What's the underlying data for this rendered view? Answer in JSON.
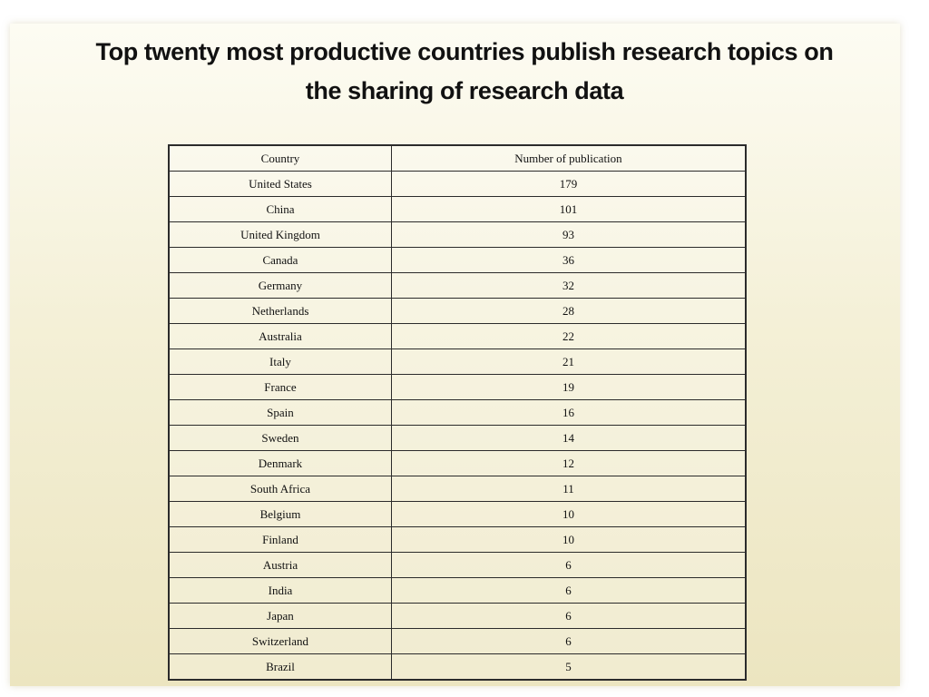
{
  "title_line1": "Top twenty most productive countries publish research topics on",
  "title_line2": "the sharing of research data",
  "chart_data": {
    "type": "table",
    "title": "Top twenty most productive countries publish research topics on the sharing of research data",
    "columns": [
      "Country",
      "Number of publication"
    ],
    "rows": [
      {
        "country": "United States",
        "count": 179
      },
      {
        "country": "China",
        "count": 101
      },
      {
        "country": "United Kingdom",
        "count": 93
      },
      {
        "country": "Canada",
        "count": 36
      },
      {
        "country": "Germany",
        "count": 32
      },
      {
        "country": "Netherlands",
        "count": 28
      },
      {
        "country": "Australia",
        "count": 22
      },
      {
        "country": "Italy",
        "count": 21
      },
      {
        "country": "France",
        "count": 19
      },
      {
        "country": "Spain",
        "count": 16
      },
      {
        "country": "Sweden",
        "count": 14
      },
      {
        "country": "Denmark",
        "count": 12
      },
      {
        "country": "South Africa",
        "count": 11
      },
      {
        "country": "Belgium",
        "count": 10
      },
      {
        "country": "Finland",
        "count": 10
      },
      {
        "country": "Austria",
        "count": 6
      },
      {
        "country": "India",
        "count": 6
      },
      {
        "country": "Japan",
        "count": 6
      },
      {
        "country": "Switzerland",
        "count": 6
      },
      {
        "country": "Brazil",
        "count": 5
      }
    ]
  }
}
